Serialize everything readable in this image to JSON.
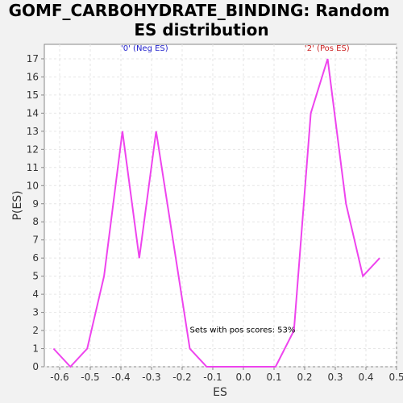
{
  "chart_data": {
    "type": "line",
    "title_line1": "GOMF_CARBOHYDRATE_BINDING: Random",
    "title_line2": "ES distribution",
    "xlabel": "ES",
    "ylabel": "P(ES)",
    "xlim": [
      -0.65,
      0.5
    ],
    "ylim": [
      0,
      17.8
    ],
    "grid": true,
    "x_ticks": [
      -0.6,
      -0.5,
      -0.4,
      -0.3,
      -0.2,
      -0.1,
      0.0,
      0.1,
      0.2,
      0.3,
      0.4,
      0.5
    ],
    "x_tick_labels": [
      "-0.6",
      "-0.5",
      "-0.4",
      "-0.3",
      "-0.2",
      "-0.1",
      "0.0",
      "0.1",
      "0.2",
      "0.3",
      "0.4",
      "0.5"
    ],
    "y_ticks": [
      0,
      1,
      2,
      3,
      4,
      5,
      6,
      7,
      8,
      9,
      10,
      11,
      12,
      13,
      14,
      15,
      16,
      17
    ],
    "y_tick_labels": [
      "0",
      "1",
      "2",
      "3",
      "4",
      "5",
      "6",
      "7",
      "8",
      "9",
      "10",
      "11",
      "12",
      "13",
      "14",
      "15",
      "16",
      "17"
    ],
    "series": [
      {
        "color": "#ee44ee",
        "x": [
          -0.62,
          -0.565,
          -0.51,
          -0.455,
          -0.395,
          -0.34,
          -0.285,
          -0.23,
          -0.175,
          -0.12,
          -0.065,
          -0.01,
          0.05,
          0.105,
          0.165,
          0.22,
          0.275,
          0.335,
          0.39,
          0.445
        ],
        "y": [
          1,
          0,
          1,
          5,
          13,
          6,
          13,
          7,
          1,
          0,
          0,
          0,
          0,
          0,
          2,
          14,
          17,
          9,
          5,
          6
        ]
      }
    ],
    "annotations": [
      {
        "text": "'0' (Neg ES)",
        "x": -0.4,
        "y": 17.45,
        "color": "#2222cc"
      },
      {
        "text": "'2' (Pos ES)",
        "x": 0.2,
        "y": 17.45,
        "color": "#cc2222"
      },
      {
        "text": "Sets with pos scores: 53%",
        "x": -0.175,
        "y": 1.9,
        "color": "#000000"
      }
    ]
  }
}
